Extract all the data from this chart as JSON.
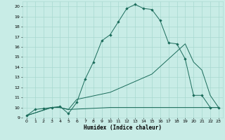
{
  "xlabel": "Humidex (Indice chaleur)",
  "xlim": [
    -0.5,
    23.5
  ],
  "ylim": [
    9,
    20.5
  ],
  "xticks": [
    0,
    1,
    2,
    3,
    4,
    5,
    6,
    7,
    8,
    9,
    10,
    11,
    12,
    13,
    14,
    15,
    16,
    17,
    18,
    19,
    20,
    21,
    22,
    23
  ],
  "yticks": [
    9,
    10,
    11,
    12,
    13,
    14,
    15,
    16,
    17,
    18,
    19,
    20
  ],
  "background_color": "#c8ece6",
  "line_color": "#1a6b5a",
  "grid_color": "#a8d8d0",
  "curve1_x": [
    0,
    1,
    2,
    3,
    4,
    5,
    6,
    7,
    8,
    9,
    10,
    11,
    12,
    13,
    14,
    15,
    16,
    17,
    18,
    19,
    20,
    21,
    22,
    23
  ],
  "curve1_y": [
    9.2,
    9.8,
    9.9,
    10.0,
    10.1,
    9.4,
    10.5,
    12.8,
    14.5,
    16.6,
    17.2,
    18.5,
    19.8,
    20.2,
    19.8,
    19.7,
    18.6,
    16.4,
    16.3,
    14.8,
    11.2,
    11.2,
    10.0,
    10.0
  ],
  "curve2_x": [
    0,
    3,
    4,
    5,
    6,
    10,
    15,
    19,
    20,
    21,
    22,
    23
  ],
  "curve2_y": [
    9.2,
    10.0,
    10.0,
    9.8,
    10.8,
    11.5,
    13.3,
    16.3,
    14.5,
    13.7,
    11.2,
    10.0
  ],
  "curve3_x": [
    0,
    3,
    4,
    5,
    10,
    15,
    20,
    23
  ],
  "curve3_y": [
    9.2,
    10.0,
    10.0,
    9.8,
    10.0,
    10.0,
    10.0,
    10.0
  ]
}
